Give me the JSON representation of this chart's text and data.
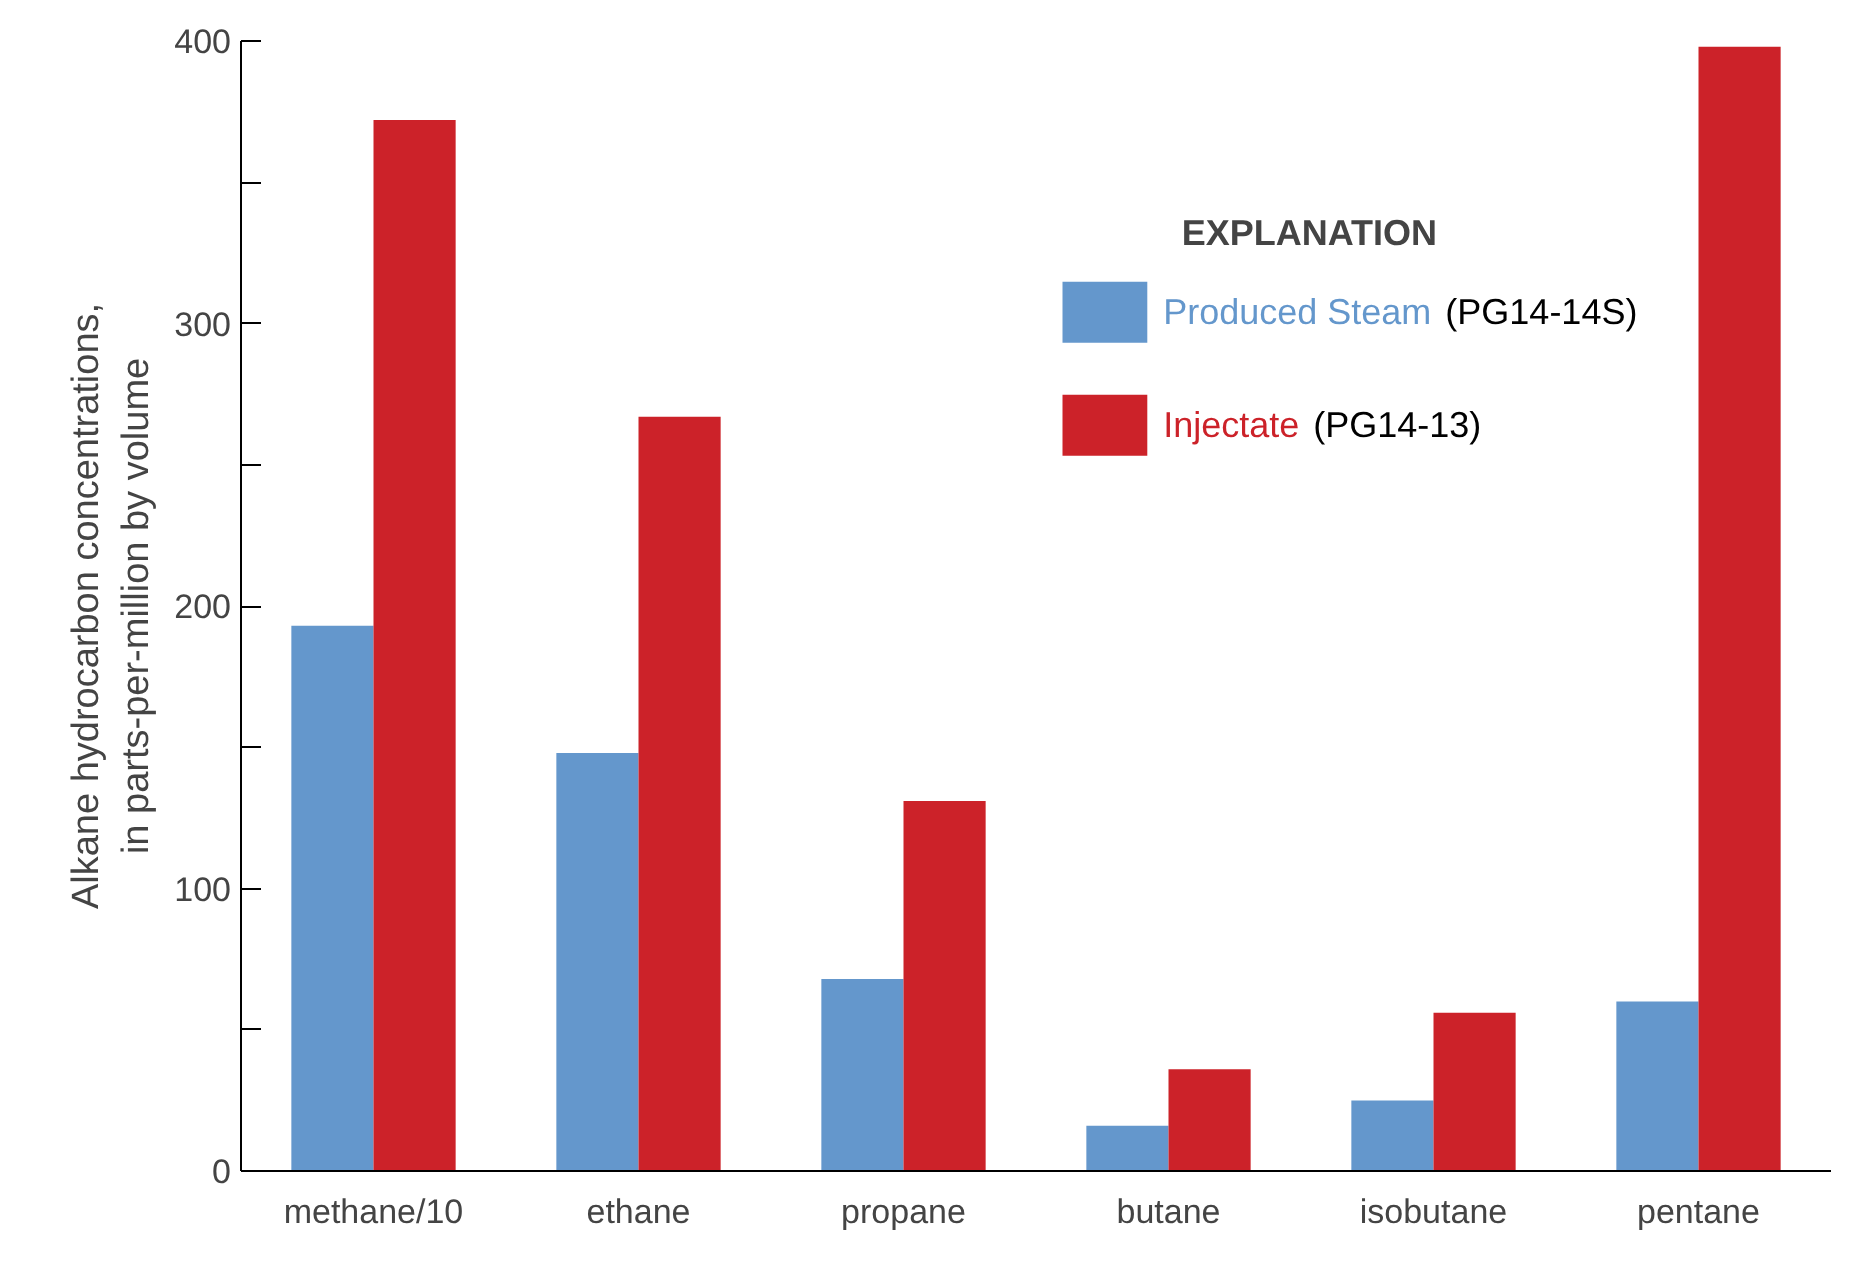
{
  "chart_data": {
    "type": "bar",
    "ylabel": "Alkane hydrocarbon concentrations,\nin parts-per-million by volume",
    "legend_title": "EXPLANATION",
    "legend": "right",
    "categories": [
      "methane/10",
      "ethane",
      "propane",
      "butane",
      "isobutane",
      "pentane"
    ],
    "series": [
      {
        "name": "Produced Steam (PG14-14S)",
        "color": "#6497cc",
        "values": [
          193,
          148,
          68,
          16,
          25,
          60
        ]
      },
      {
        "name": "Injectate (PG14-13)",
        "color": "#cc2229",
        "values": [
          372,
          267,
          131,
          36,
          56,
          398
        ]
      }
    ],
    "ylim": [
      0,
      400
    ],
    "yticks": [
      0,
      {
        "value": 50,
        "label": null
      },
      100,
      {
        "value": 150,
        "label": null
      },
      200,
      {
        "value": 250,
        "label": null
      },
      300,
      {
        "value": 350,
        "label": null
      },
      400
    ],
    "grid": false
  }
}
